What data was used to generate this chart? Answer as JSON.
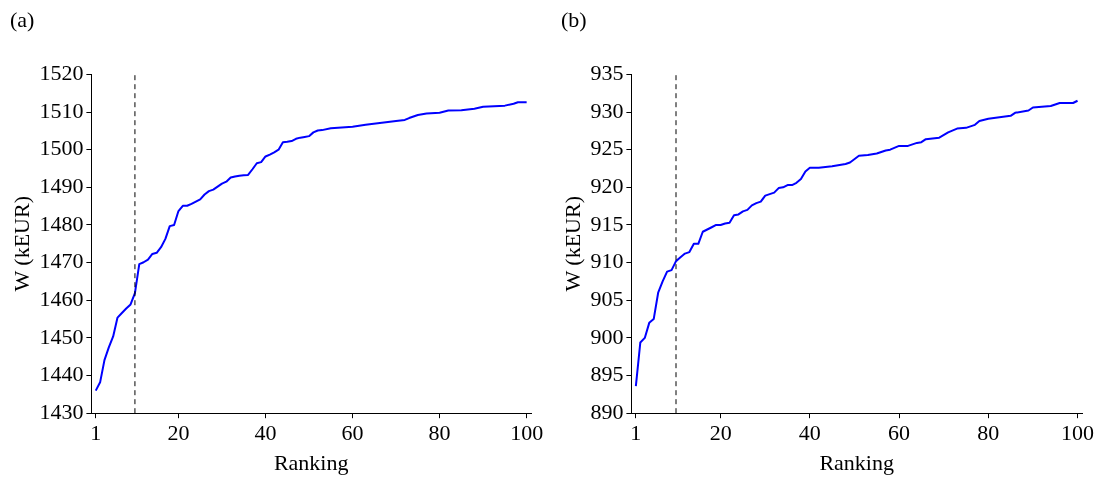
{
  "chart_data": [
    {
      "type": "line",
      "title": "(a)",
      "xlabel": "Ranking",
      "ylabel": "W (kEUR)",
      "marker": "none",
      "line_style": "solid",
      "x": [
        1,
        2,
        3,
        4,
        5,
        6,
        7,
        8,
        9,
        10,
        11,
        12,
        13,
        14,
        15,
        16,
        17,
        18,
        19,
        20,
        21,
        22,
        23,
        24,
        25,
        26,
        27,
        28,
        29,
        30,
        31,
        32,
        33,
        34,
        35,
        36,
        37,
        38,
        39,
        40,
        41,
        42,
        43,
        44,
        45,
        46,
        47,
        48,
        49,
        50,
        51,
        52,
        53,
        55,
        60,
        63,
        70,
        72,
        73,
        75,
        77,
        80,
        82,
        85,
        88,
        90,
        95,
        97,
        98,
        100
      ],
      "series": [
        {
          "color": "#0000ff",
          "values": [
            1436.0,
            1438.2,
            1444.1,
            1447.5,
            1450.4,
            1455.4,
            1456.6,
            1457.8,
            1458.9,
            1461.9,
            1469.6,
            1470.1,
            1470.8,
            1472.3,
            1472.6,
            1474.1,
            1476.3,
            1479.7,
            1480.0,
            1483.7,
            1485.1,
            1485.1,
            1485.6,
            1486.2,
            1486.8,
            1488.1,
            1489.0,
            1489.4,
            1490.2,
            1491.0,
            1491.5,
            1492.6,
            1492.9,
            1493.1,
            1493.2,
            1493.3,
            1494.8,
            1496.4,
            1496.7,
            1498.2,
            1498.7,
            1499.3,
            1500.0,
            1502.0,
            1502.1,
            1502.3,
            1502.9,
            1503.2,
            1503.4,
            1503.6,
            1504.6,
            1505.1,
            1505.2,
            1505.7,
            1506.1,
            1506.6,
            1507.6,
            1507.9,
            1508.4,
            1509.2,
            1509.6,
            1509.8,
            1510.4,
            1510.5,
            1510.9,
            1511.4,
            1511.7,
            1512.2,
            1512.6,
            1512.6
          ]
        }
      ],
      "xlim": [
        0,
        101
      ],
      "ylim": [
        1430,
        1520
      ],
      "xticks": [
        1,
        20,
        40,
        60,
        80,
        100
      ],
      "yticks": [
        1430,
        1440,
        1450,
        1460,
        1470,
        1480,
        1490,
        1500,
        1510,
        1520
      ],
      "grid": false,
      "ref_lines": [
        {
          "axis": "x",
          "value": 10,
          "color": "#000000",
          "line_style": "dashed"
        }
      ]
    },
    {
      "type": "line",
      "title": "(b)",
      "xlabel": "Ranking",
      "ylabel": "W (kEUR)",
      "marker": "none",
      "line_style": "solid",
      "x": [
        1,
        2,
        3,
        4,
        5,
        6,
        7,
        8,
        9,
        10,
        11,
        12,
        13,
        14,
        15,
        16,
        17,
        18,
        19,
        20,
        21,
        22,
        23,
        24,
        25,
        26,
        27,
        28,
        29,
        30,
        31,
        32,
        33,
        34,
        35,
        36,
        37,
        38,
        39,
        40,
        42,
        45,
        48,
        49,
        51,
        53,
        55,
        57,
        58,
        60,
        62,
        64,
        65,
        66,
        69,
        71,
        73,
        75,
        77,
        78,
        80,
        85,
        86,
        89,
        90,
        94,
        96,
        99,
        100
      ],
      "series": [
        {
          "color": "#0000ff",
          "values": [
            893.6,
            899.4,
            900.0,
            902.0,
            902.5,
            906.0,
            907.5,
            908.8,
            909.0,
            910.2,
            910.7,
            911.2,
            911.4,
            912.5,
            912.5,
            914.1,
            914.4,
            914.7,
            915.0,
            915.0,
            915.2,
            915.3,
            916.3,
            916.4,
            916.8,
            917.0,
            917.6,
            917.9,
            918.1,
            918.9,
            919.1,
            919.3,
            919.9,
            920.0,
            920.3,
            920.3,
            920.6,
            921.1,
            922.1,
            922.6,
            922.6,
            922.8,
            923.1,
            923.3,
            924.2,
            924.3,
            924.5,
            924.9,
            925.0,
            925.5,
            925.5,
            925.9,
            926.0,
            926.4,
            926.6,
            927.3,
            927.8,
            927.9,
            928.3,
            928.8,
            929.1,
            929.5,
            929.9,
            930.2,
            930.6,
            930.8,
            931.2,
            931.2,
            931.5
          ]
        }
      ],
      "xlim": [
        0,
        101
      ],
      "ylim": [
        890,
        935
      ],
      "xticks": [
        1,
        20,
        40,
        60,
        80,
        100
      ],
      "yticks": [
        890,
        895,
        900,
        905,
        910,
        915,
        920,
        925,
        930,
        935
      ],
      "grid": false,
      "ref_lines": [
        {
          "axis": "x",
          "value": 10,
          "color": "#000000",
          "line_style": "dashed"
        }
      ]
    }
  ]
}
